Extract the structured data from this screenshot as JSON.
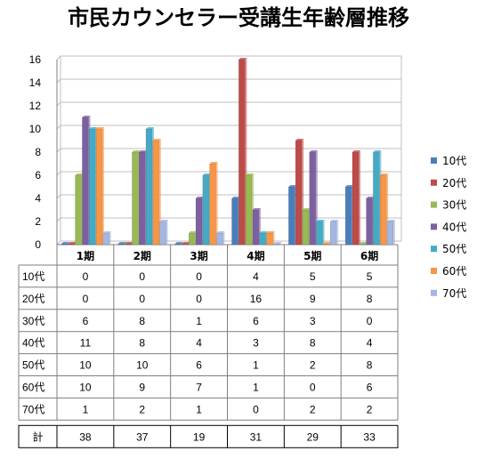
{
  "chart_data": {
    "type": "bar",
    "title": "市民カウンセラー受講生年齢層推移",
    "categories": [
      "1期",
      "2期",
      "3期",
      "4期",
      "5期",
      "6期"
    ],
    "ylim": [
      0,
      16
    ],
    "yticks": [
      0,
      2,
      4,
      6,
      8,
      10,
      12,
      14,
      16
    ],
    "grid": true,
    "legend_position": "right",
    "series": [
      {
        "name": "10代",
        "color": "#4a7ebb",
        "values": [
          0,
          0,
          0,
          4,
          5,
          5
        ]
      },
      {
        "name": "20代",
        "color": "#be4b48",
        "values": [
          0,
          0,
          0,
          16,
          9,
          8
        ]
      },
      {
        "name": "30代",
        "color": "#98b954",
        "values": [
          6,
          8,
          1,
          6,
          3,
          0
        ]
      },
      {
        "name": "40代",
        "color": "#7d60a0",
        "values": [
          11,
          8,
          4,
          3,
          8,
          4
        ]
      },
      {
        "name": "50代",
        "color": "#46aac5",
        "values": [
          10,
          10,
          6,
          1,
          2,
          8
        ]
      },
      {
        "name": "60代",
        "color": "#f79646",
        "values": [
          10,
          9,
          7,
          1,
          0,
          6
        ]
      },
      {
        "name": "70代",
        "color": "#a5b6e0",
        "values": [
          1,
          2,
          1,
          0,
          2,
          2
        ]
      }
    ],
    "totals_label": "計",
    "totals": [
      38,
      37,
      19,
      31,
      29,
      33
    ]
  }
}
